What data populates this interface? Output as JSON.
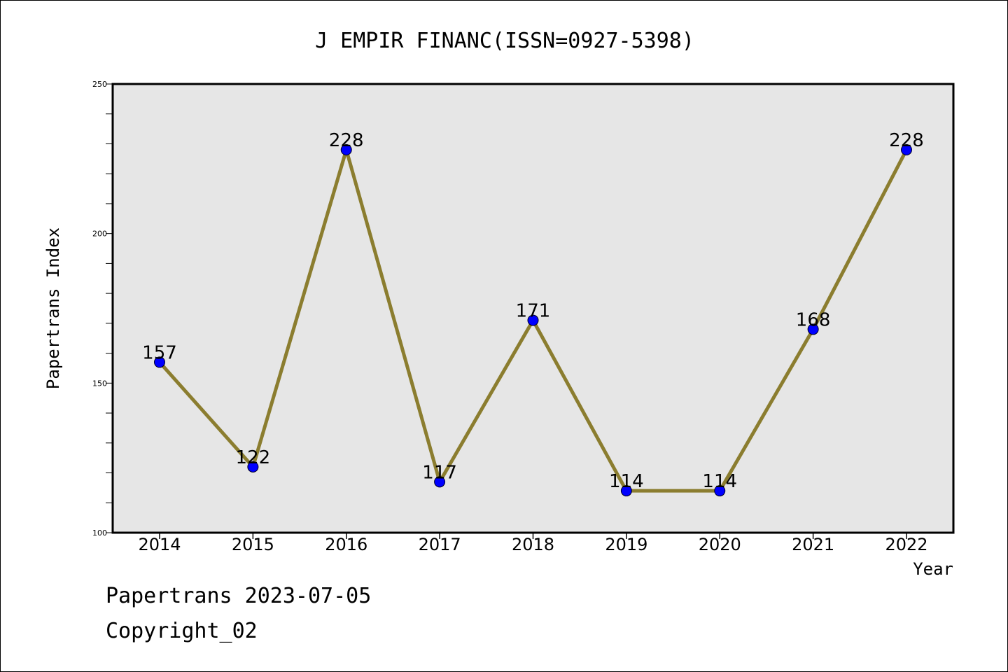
{
  "chart_data": {
    "type": "line",
    "title": "J EMPIR FINANC(ISSN=0927-5398)",
    "xlabel": "Year",
    "ylabel": "Papertrans Index",
    "categories": [
      "2014",
      "2015",
      "2016",
      "2017",
      "2018",
      "2019",
      "2020",
      "2021",
      "2022"
    ],
    "series": [
      {
        "values": [
          157,
          122,
          228,
          117,
          171,
          114,
          114,
          168,
          228
        ]
      }
    ],
    "data_labels": [
      "157",
      "122",
      "228",
      "117",
      "171",
      "114",
      "114",
      "168",
      "228"
    ],
    "ylim": [
      100,
      250
    ],
    "yticks": [
      "100",
      "150",
      "200",
      "250"
    ],
    "grid": false,
    "colors": {
      "line": "#8B7D2F",
      "marker": "#0000FF",
      "plot_background": "#E6E6E6"
    }
  },
  "footer": {
    "line1": "Papertrans 2023-07-05",
    "line2": "Copyright_02"
  }
}
